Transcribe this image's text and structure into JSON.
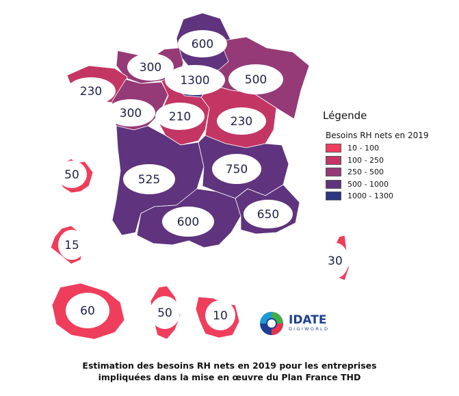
{
  "legend": {
    "title": "Légende",
    "subtitle": "Besoins RH nets en 2019",
    "items": [
      {
        "label": "10 - 100",
        "color": "#ef3e5c"
      },
      {
        "label": "100 - 250",
        "color": "#c33664"
      },
      {
        "label": "250 - 500",
        "color": "#953a76"
      },
      {
        "label": "500 - 1000",
        "color": "#5f337d"
      },
      {
        "label": "1000 - 1300",
        "color": "#2b3782"
      }
    ]
  },
  "regions": [
    {
      "name": "Hauts-de-France",
      "value": "600",
      "color": "#5f337d"
    },
    {
      "name": "Normandie",
      "value": "300",
      "color": "#953a76"
    },
    {
      "name": "Île-de-France",
      "value": "1300",
      "color": "#2b3782"
    },
    {
      "name": "Grand Est",
      "value": "500",
      "color": "#953a76"
    },
    {
      "name": "Bretagne",
      "value": "230",
      "color": "#c33664"
    },
    {
      "name": "Pays de la Loire",
      "value": "300",
      "color": "#953a76"
    },
    {
      "name": "Centre-Val de Loire",
      "value": "210",
      "color": "#c33664"
    },
    {
      "name": "Bourgogne-Franche-Comté",
      "value": "230",
      "color": "#c33664"
    },
    {
      "name": "Nouvelle-Aquitaine",
      "value": "525",
      "color": "#5f337d"
    },
    {
      "name": "Auvergne-Rhône-Alpes",
      "value": "750",
      "color": "#5f337d"
    },
    {
      "name": "Occitanie",
      "value": "600",
      "color": "#5f337d"
    },
    {
      "name": "Provence-Alpes-Côte d'Azur",
      "value": "650",
      "color": "#5f337d"
    },
    {
      "name": "Corse",
      "value": "30",
      "color": "#ef3e5c"
    },
    {
      "name": "Guadeloupe",
      "value": "50",
      "color": "#ef3e5c"
    },
    {
      "name": "Martinique",
      "value": "15",
      "color": "#ef3e5c"
    },
    {
      "name": "La Réunion",
      "value": "60",
      "color": "#ef3e5c"
    },
    {
      "name": "Mayotte",
      "value": "50",
      "color": "#ef3e5c"
    },
    {
      "name": "Guyane",
      "value": "10",
      "color": "#ef3e5c"
    }
  ],
  "logo": {
    "word": "IDATE",
    "sub": "DIGIWORLD"
  },
  "caption": {
    "line1": "Estimation des besoins RH nets en 2019 pour les entreprises",
    "line2": "impliquées dans la mise en œuvre du Plan France THD"
  }
}
